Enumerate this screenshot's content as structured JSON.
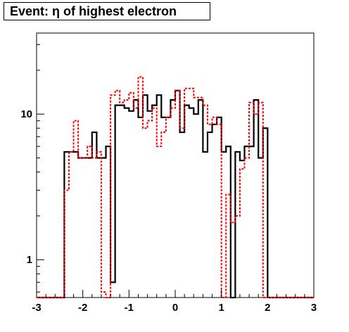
{
  "chart_data": {
    "type": "histogram",
    "title": "Event: η of highest electron",
    "xlabel": "",
    "ylabel": "",
    "xlim": [
      -3,
      3
    ],
    "ylim": [
      0.55,
      36
    ],
    "y_scale": "log",
    "grid": false,
    "legend": "none",
    "x_ticks": [
      -3,
      -2,
      -1,
      0,
      1,
      2,
      3
    ],
    "x_tick_labels": [
      "-3",
      "-2",
      "-1",
      "0",
      "1",
      "2",
      "3"
    ],
    "y_ticks": [
      1,
      10
    ],
    "y_tick_labels": [
      "1",
      "10"
    ],
    "bin_width": 0.1,
    "x_start": -3,
    "series": [
      {
        "style": "solid",
        "color": "#000000",
        "values": [
          0,
          0,
          0,
          0,
          0,
          0,
          5.5,
          5.5,
          5.5,
          5,
          5,
          5,
          7.5,
          5,
          5,
          6,
          0.7,
          11.5,
          11.5,
          11,
          10.5,
          12.5,
          9.5,
          13.5,
          10.5,
          11.5,
          13.5,
          9.5,
          9.5,
          12.5,
          14.5,
          7.5,
          11.5,
          11,
          10,
          12.5,
          5.5,
          7.5,
          8.5,
          9.5,
          5.5,
          6,
          0.5,
          5.5,
          4.8,
          6,
          6,
          12.5,
          5,
          8,
          0,
          0,
          0,
          0,
          0,
          0,
          0,
          0,
          0,
          0
        ]
      },
      {
        "style": "dashed",
        "color": "#ff0000",
        "values": [
          0,
          0,
          0,
          0,
          0,
          0,
          3,
          5.5,
          9,
          5,
          5,
          6,
          5,
          5.5,
          0.6,
          0.45,
          13.5,
          14.5,
          12,
          12.5,
          14,
          11,
          18,
          8,
          9,
          11,
          6,
          7.5,
          9.5,
          11,
          14.5,
          8,
          15,
          15,
          13,
          13,
          11.5,
          8.5,
          9.5,
          8.5,
          0.5,
          2.8,
          1.8,
          2,
          4.2,
          5,
          12,
          10,
          12,
          0,
          0,
          0,
          0,
          0,
          0,
          0,
          0,
          0,
          0,
          0
        ]
      }
    ]
  }
}
